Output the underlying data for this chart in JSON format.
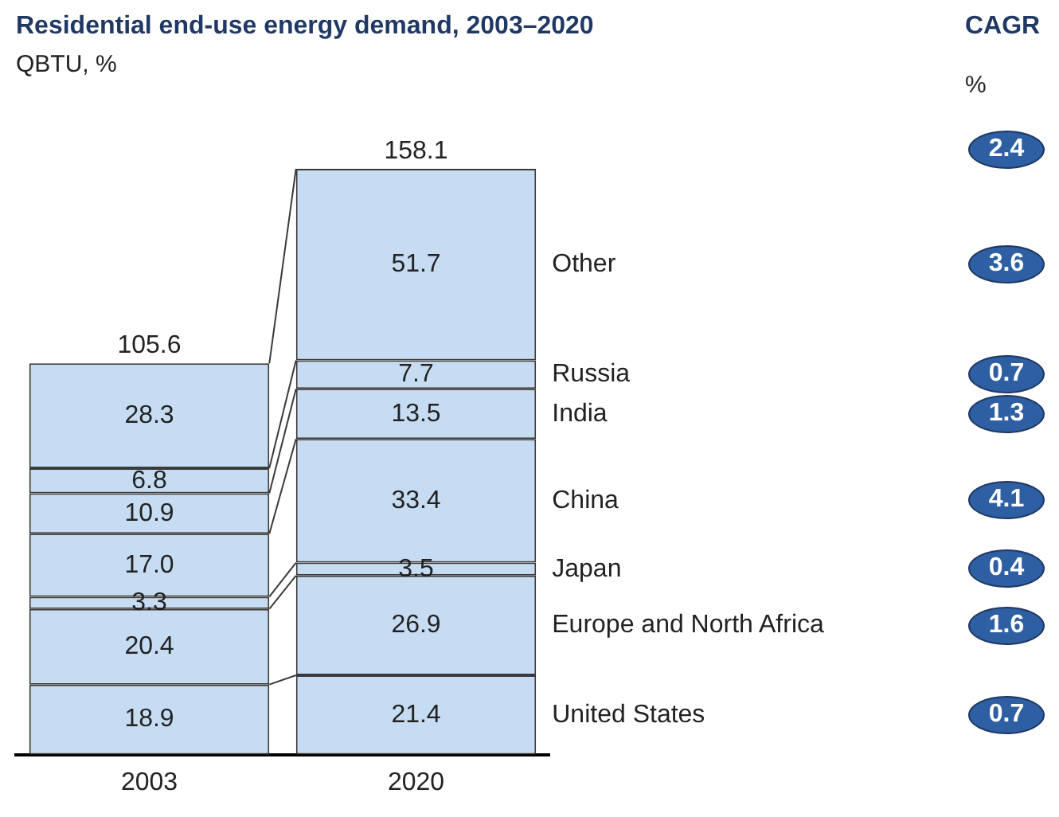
{
  "chart_data": {
    "type": "bar",
    "title": "Residential end-use energy demand, 2003–2020",
    "subtitle": "QBTU, %",
    "categories": [
      "2003",
      "2020"
    ],
    "stacked": true,
    "totals": [
      "105.6",
      "158.1"
    ],
    "legend": false,
    "grid": false,
    "series": [
      {
        "name": "United States",
        "color": "#c6dcf2",
        "values": [
          18.9,
          21.4
        ],
        "value_labels": [
          "18.9",
          "21.4"
        ]
      },
      {
        "name": "Europe and North Africa",
        "color": "#c6dcf2",
        "values": [
          20.4,
          26.9
        ],
        "value_labels": [
          "20.4",
          "26.9"
        ]
      },
      {
        "name": "Japan",
        "color": "#c6dcf2",
        "values": [
          3.3,
          3.5
        ],
        "value_labels": [
          "3.3",
          "3.5"
        ]
      },
      {
        "name": "China",
        "color": "#c6dcf2",
        "values": [
          17.0,
          33.4
        ],
        "value_labels": [
          "17.0",
          "33.4"
        ]
      },
      {
        "name": "India",
        "color": "#c6dcf2",
        "values": [
          10.9,
          13.5
        ],
        "value_labels": [
          "10.9",
          "13.5"
        ]
      },
      {
        "name": "Russia",
        "color": "#c6dcf2",
        "values": [
          6.8,
          7.7
        ],
        "value_labels": [
          "6.8",
          "7.7"
        ]
      },
      {
        "name": "Other",
        "color": "#c6dcf2",
        "values": [
          28.3,
          51.7
        ],
        "value_labels": [
          "28.3",
          "51.7"
        ]
      }
    ],
    "annotations": [
      "CAGR",
      "%",
      "2.4",
      "3.6",
      "0.7",
      "1.3",
      "4.1",
      "0.4",
      "1.6",
      "0.7"
    ]
  }
}
